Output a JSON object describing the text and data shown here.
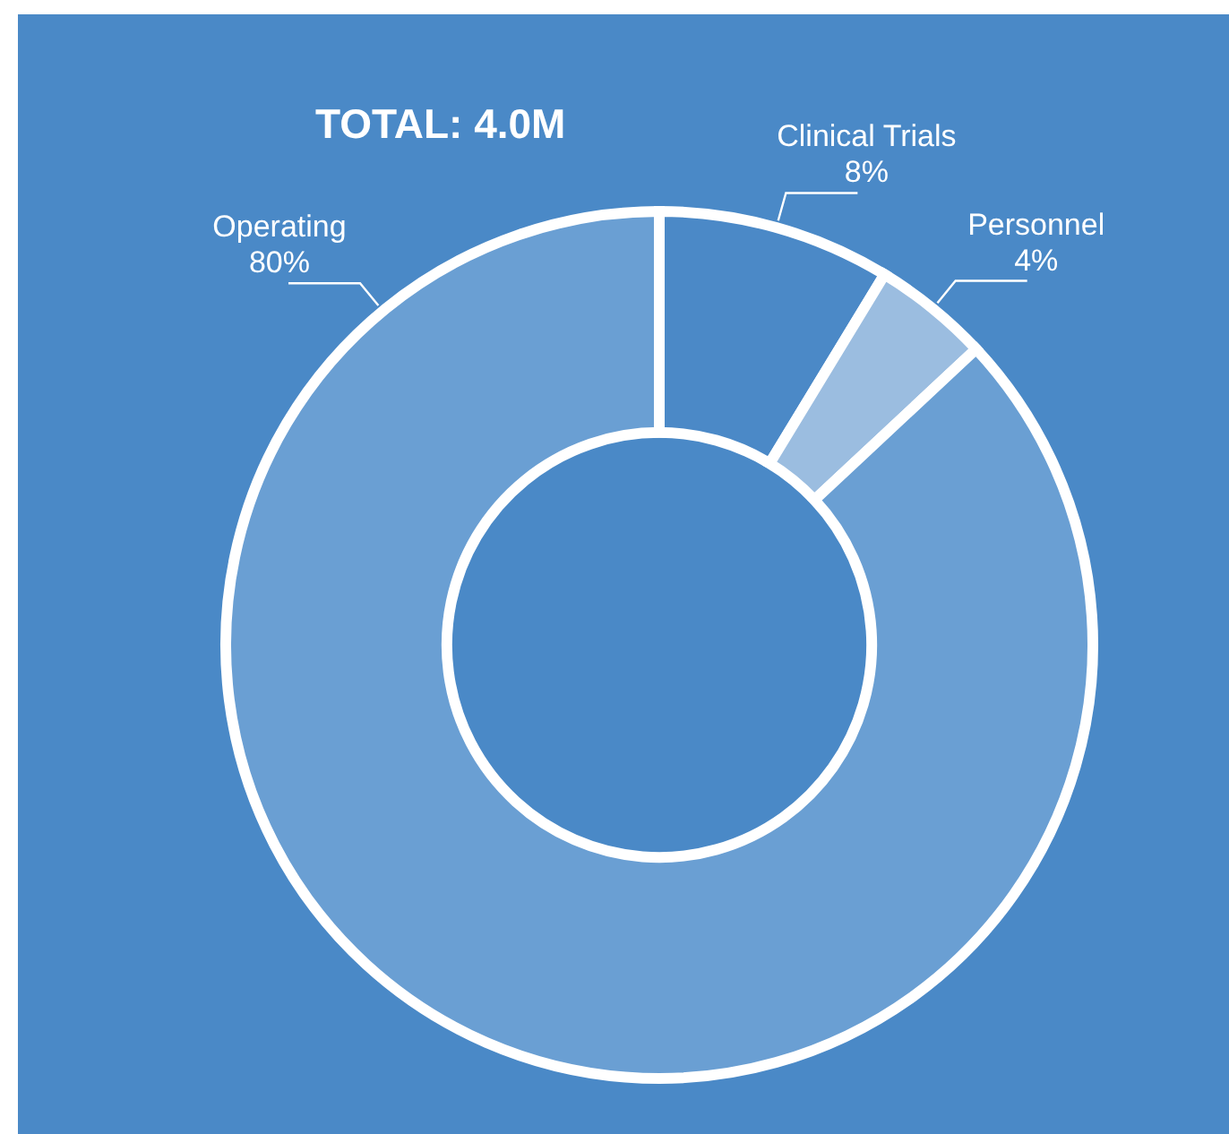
{
  "chart_data": {
    "type": "donut",
    "title": "TOTAL: 4.0M",
    "categories": [
      "Clinical Trials",
      "Personnel",
      "Operating"
    ],
    "values": [
      8,
      4,
      80
    ],
    "value_labels": [
      "8%",
      "4%",
      "80%"
    ],
    "colors": [
      "#4b89c7",
      "#9bbde0",
      "#6a9fd3"
    ],
    "legend": false
  }
}
